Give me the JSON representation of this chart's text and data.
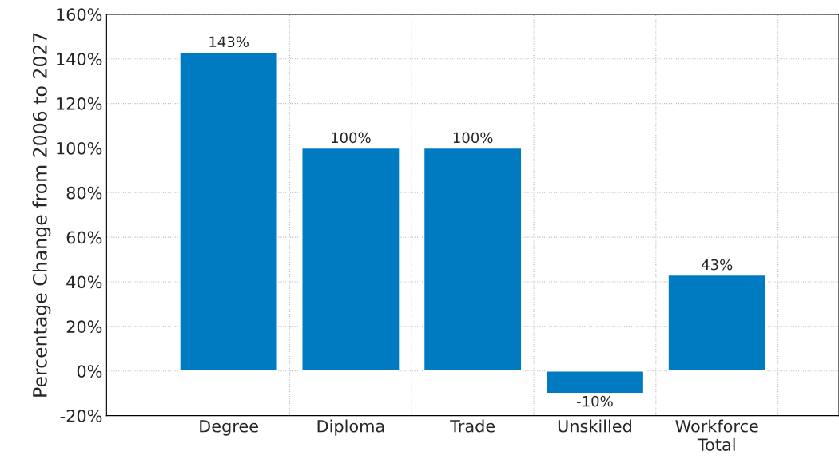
{
  "chart_data": {
    "type": "bar",
    "ylabel": "Percentage Change from 2006 to 2027",
    "categories": [
      "Degree",
      "Diploma",
      "Trade",
      "Unskilled",
      "Workforce\nTotal"
    ],
    "values": [
      143,
      100,
      100,
      -10,
      43
    ],
    "value_labels": [
      "143%",
      "100%",
      "100%",
      "-10%",
      "43%"
    ],
    "color": "#007bc2",
    "ylim": [
      -20,
      160
    ],
    "yticks": [
      {
        "value": -20,
        "label": "-20%"
      },
      {
        "value": 0,
        "label": "0%"
      },
      {
        "value": 20,
        "label": "20%"
      },
      {
        "value": 40,
        "label": "40%"
      },
      {
        "value": 60,
        "label": "60%"
      },
      {
        "value": 80,
        "label": "80%"
      },
      {
        "value": 100,
        "label": "100%"
      },
      {
        "value": 120,
        "label": "120%"
      },
      {
        "value": 140,
        "label": "140%"
      },
      {
        "value": 160,
        "label": "160%"
      }
    ],
    "grid": true
  }
}
